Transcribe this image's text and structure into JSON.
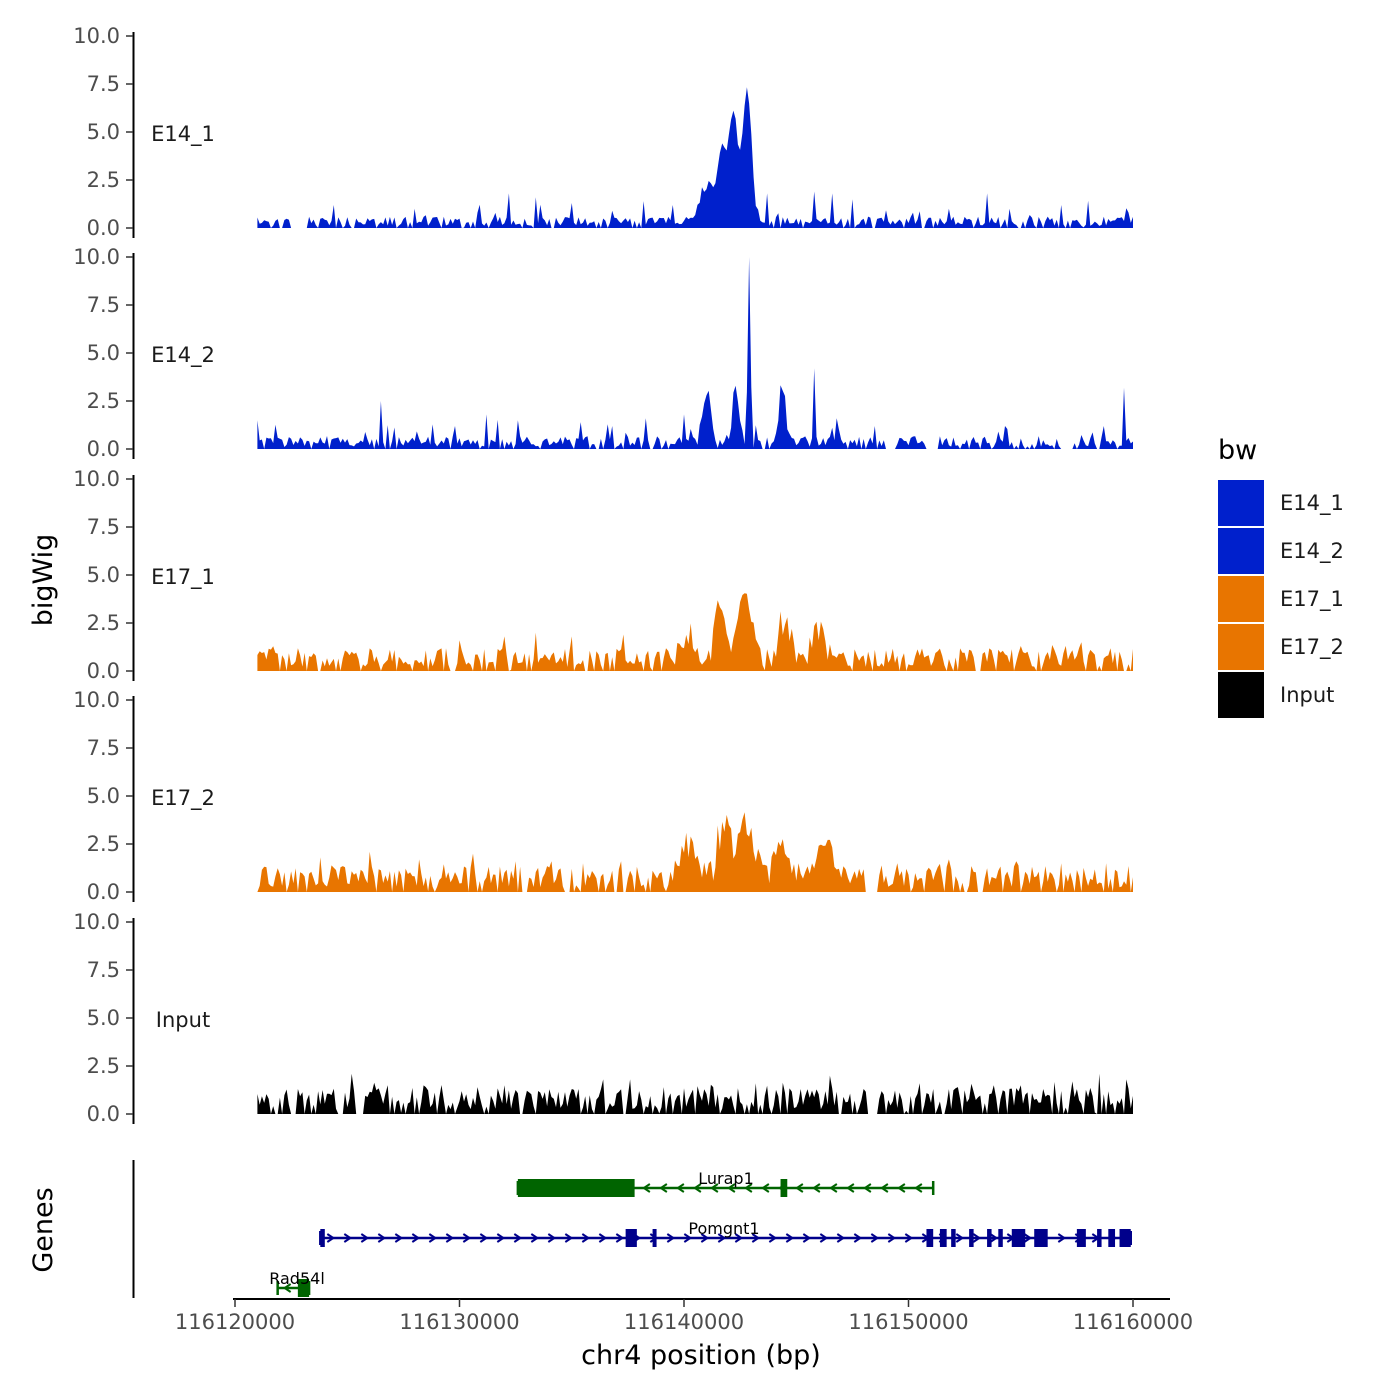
{
  "chart_data": {
    "type": "area",
    "ylabel": "bigWig",
    "genes_label": "Genes",
    "xlabel": "chr4 position (bp)",
    "x_range": [
      116121000,
      116160000
    ],
    "xlim": [
      116120000,
      116162000
    ],
    "ylim": [
      0,
      10
    ],
    "yticks": [
      "0.0",
      "2.5",
      "5.0",
      "7.5",
      "10.0"
    ],
    "xticks": [
      {
        "value": 116120000,
        "label": "116120000"
      },
      {
        "value": 116130000,
        "label": "116130000"
      },
      {
        "value": 116140000,
        "label": "116140000"
      },
      {
        "value": 116150000,
        "label": "116150000"
      },
      {
        "value": 116160000,
        "label": "116160000"
      }
    ],
    "legend": {
      "title": "bw",
      "position": "right",
      "entries": [
        {
          "label": "E14_1",
          "color": "#0020CC"
        },
        {
          "label": "E14_2",
          "color": "#0020CC"
        },
        {
          "label": "E17_1",
          "color": "#E87500"
        },
        {
          "label": "E17_2",
          "color": "#E87500"
        },
        {
          "label": "Input",
          "color": "#000000"
        }
      ]
    },
    "tracks": [
      {
        "name": "E14_1",
        "color": "#0020CC",
        "peaks": [
          [
            116142800,
            6.8,
            300
          ],
          [
            116142200,
            5.5,
            250
          ],
          [
            116141700,
            4.0,
            300
          ],
          [
            116141000,
            2.0,
            400
          ]
        ],
        "spikes": [
          [
            116124400,
            1.2
          ],
          [
            116128000,
            1.0
          ],
          [
            116130800,
            0.8
          ],
          [
            116132200,
            1.8
          ],
          [
            116133400,
            1.6
          ],
          [
            116135000,
            1.3
          ],
          [
            116136800,
            0.9
          ],
          [
            116138200,
            1.4
          ],
          [
            116139500,
            1.2
          ],
          [
            116143700,
            1.8
          ],
          [
            116145800,
            1.9
          ],
          [
            116146600,
            1.8
          ],
          [
            116147500,
            1.5
          ],
          [
            116150200,
            0.8
          ],
          [
            116153500,
            1.8
          ],
          [
            116154500,
            1.0
          ],
          [
            116156800,
            1.2
          ],
          [
            116159800,
            0.8
          ]
        ],
        "baseline": 0.35,
        "noise": 0.9,
        "seed": 11,
        "gaps": [
          [
            116122500,
            116123200
          ]
        ]
      },
      {
        "name": "E14_2",
        "color": "#0020CC",
        "peaks": [
          [
            116142900,
            9.7,
            90
          ],
          [
            116142300,
            3.0,
            200
          ],
          [
            116141000,
            2.8,
            250
          ],
          [
            116144400,
            2.8,
            200
          ]
        ],
        "spikes": [
          [
            116121000,
            1.5
          ],
          [
            116126500,
            2.5
          ],
          [
            116129800,
            1.2
          ],
          [
            116131200,
            1.8
          ],
          [
            116132600,
            1.5
          ],
          [
            116135400,
            1.4
          ],
          [
            116136800,
            1.2
          ],
          [
            116138300,
            1.6
          ],
          [
            116140000,
            1.8
          ],
          [
            116145800,
            4.2
          ],
          [
            116146800,
            1.6
          ],
          [
            116148500,
            1.2
          ],
          [
            116151000,
            1.4
          ],
          [
            116154300,
            1.2
          ],
          [
            116158700,
            1.2
          ],
          [
            116159600,
            3.2
          ]
        ],
        "baseline": 0.4,
        "noise": 1.0,
        "seed": 23,
        "gaps": [
          [
            116149000,
            116149400
          ],
          [
            116150800,
            116151300
          ],
          [
            116156800,
            116157300
          ]
        ]
      },
      {
        "name": "E17_1",
        "color": "#E87500",
        "peaks": [
          [
            116142700,
            3.8,
            400
          ],
          [
            116141600,
            3.0,
            300
          ],
          [
            116140200,
            1.4,
            500
          ],
          [
            116144500,
            2.0,
            400
          ],
          [
            116146000,
            1.6,
            400
          ]
        ],
        "spikes": [
          [
            116125200,
            1.0
          ],
          [
            116130000,
            1.6
          ],
          [
            116132000,
            1.8
          ],
          [
            116133400,
            2.0
          ],
          [
            116135000,
            1.8
          ],
          [
            116137300,
            1.9
          ],
          [
            116148200,
            1.0
          ],
          [
            116151400,
            0.9
          ],
          [
            116155000,
            1.3
          ],
          [
            116157600,
            1.2
          ],
          [
            116159200,
            1.0
          ]
        ],
        "baseline": 0.7,
        "noise": 0.6,
        "seed": 37,
        "gaps": []
      },
      {
        "name": "E17_2",
        "color": "#E87500",
        "peaks": [
          [
            116142800,
            3.0,
            500
          ],
          [
            116141800,
            2.8,
            400
          ],
          [
            116140200,
            1.8,
            500
          ],
          [
            116144300,
            1.9,
            400
          ],
          [
            116146300,
            2.1,
            400
          ]
        ],
        "spikes": [
          [
            116123800,
            1.8
          ],
          [
            116126000,
            2.1
          ],
          [
            116128200,
            1.7
          ],
          [
            116130600,
            2.0
          ],
          [
            116132500,
            1.6
          ],
          [
            116134100,
            1.6
          ],
          [
            116135500,
            1.5
          ],
          [
            116137200,
            1.6
          ],
          [
            116149500,
            1.5
          ],
          [
            116151800,
            1.7
          ],
          [
            116154800,
            1.6
          ],
          [
            116156800,
            1.5
          ],
          [
            116158800,
            1.5
          ]
        ],
        "baseline": 0.8,
        "noise": 0.6,
        "seed": 51,
        "gaps": [
          [
            116148100,
            116148600
          ]
        ]
      },
      {
        "name": "Input",
        "color": "#000000",
        "peaks": [],
        "spikes": [
          [
            116125200,
            2.1
          ],
          [
            116126800,
            1.5
          ],
          [
            116128500,
            1.4
          ],
          [
            116130800,
            1.4
          ],
          [
            116132000,
            1.5
          ],
          [
            116133500,
            1.2
          ],
          [
            116135000,
            1.3
          ],
          [
            116136400,
            1.8
          ],
          [
            116137600,
            1.8
          ],
          [
            116139100,
            1.4
          ],
          [
            116141300,
            1.4
          ],
          [
            116143200,
            1.6
          ],
          [
            116145200,
            1.3
          ],
          [
            116146500,
            2.0
          ],
          [
            116148000,
            1.3
          ],
          [
            116150500,
            1.6
          ],
          [
            116152200,
            1.4
          ],
          [
            116153800,
            1.5
          ],
          [
            116155000,
            1.5
          ],
          [
            116157300,
            1.7
          ],
          [
            116158500,
            2.1
          ],
          [
            116159700,
            1.8
          ]
        ],
        "baseline": 0.8,
        "noise": 0.7,
        "seed": 67,
        "gaps": [
          [
            116148200,
            116148600
          ]
        ]
      }
    ],
    "genes": [
      {
        "name": "Lurap1",
        "strand": "-",
        "color": "#006400",
        "row": 0,
        "start": 116132600,
        "end": 116151100,
        "exons": [
          [
            116132600,
            116137800
          ],
          [
            116144300,
            116144600
          ]
        ]
      },
      {
        "name": "Pomgnt1",
        "strand": "+",
        "color": "#00008B",
        "row": 1,
        "start": 116123800,
        "end": 116159900,
        "exons": [
          [
            116123800,
            116124000
          ],
          [
            116137400,
            116137900
          ],
          [
            116138600,
            116138700
          ],
          [
            116150800,
            116151100
          ],
          [
            116151400,
            116151700
          ],
          [
            116151900,
            116152100
          ],
          [
            116152700,
            116152900
          ],
          [
            116153500,
            116153700
          ],
          [
            116154000,
            116154200
          ],
          [
            116154600,
            116155200
          ],
          [
            116155600,
            116156200
          ],
          [
            116157500,
            116157900
          ],
          [
            116158400,
            116158600
          ],
          [
            116158900,
            116159200
          ],
          [
            116159400,
            116159900
          ]
        ]
      },
      {
        "name": "Rad54l",
        "strand": "-",
        "color": "#006400",
        "row": 2,
        "start": 116121900,
        "end": 116123300,
        "exons": [
          [
            116122800,
            116123300
          ]
        ]
      }
    ]
  }
}
